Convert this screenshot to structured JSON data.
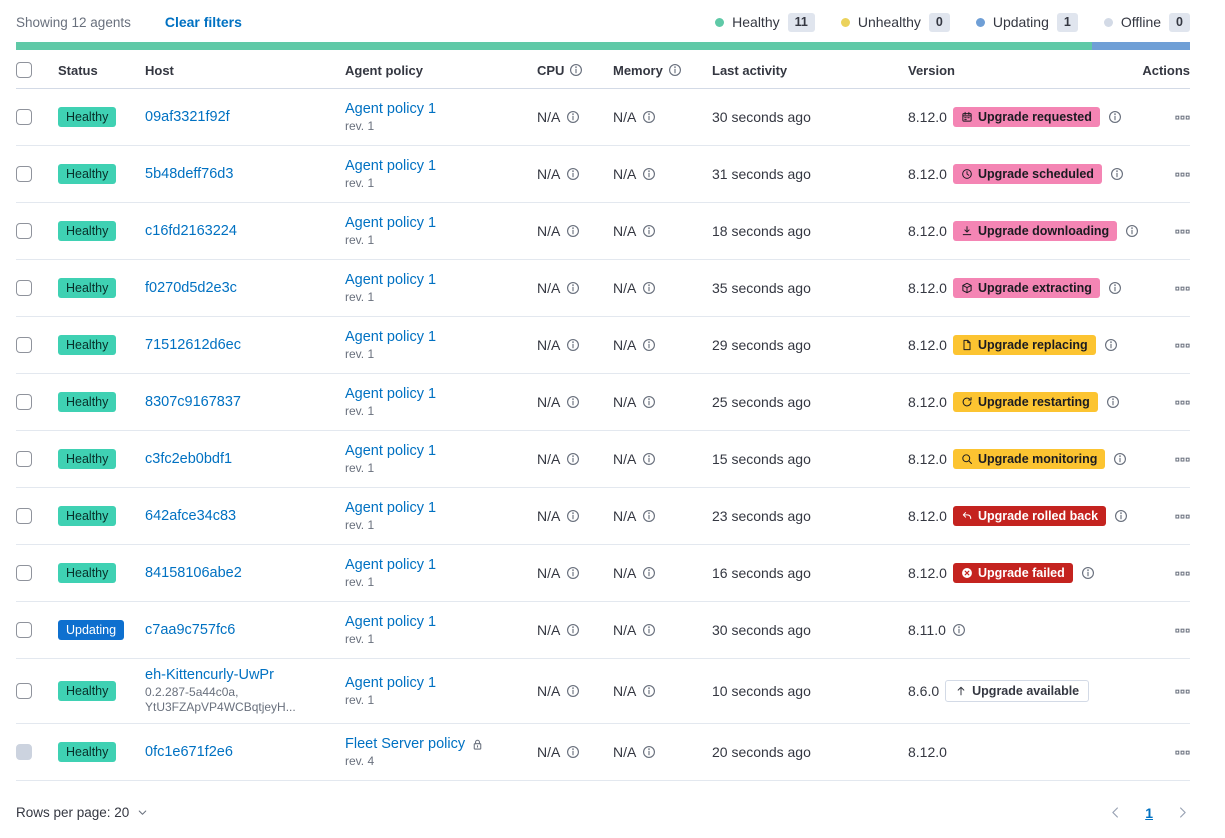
{
  "toolbar": {
    "showing": "Showing 12 agents",
    "clear_filters": "Clear filters"
  },
  "status_legend": [
    {
      "label": "Healthy",
      "count": "11",
      "color": "#5fc9a7"
    },
    {
      "label": "Unhealthy",
      "count": "0",
      "color": "#ebd25b"
    },
    {
      "label": "Updating",
      "count": "1",
      "color": "#6f9fd6"
    },
    {
      "label": "Offline",
      "count": "0",
      "color": "#d3dae6"
    }
  ],
  "progress_bar": {
    "segments": [
      {
        "name": "healthy-segment",
        "color": "#5fc9a7",
        "flex": 11
      },
      {
        "name": "updating-segment",
        "color": "#6f9fd6",
        "flex": 1
      }
    ]
  },
  "table": {
    "columns": [
      {
        "label": "Status",
        "info_icon": false,
        "align": "left"
      },
      {
        "label": "Host",
        "info_icon": false,
        "align": "left"
      },
      {
        "label": "Agent policy",
        "info_icon": false,
        "align": "left"
      },
      {
        "label": "CPU",
        "info_icon": true,
        "align": "left"
      },
      {
        "label": "Memory",
        "info_icon": true,
        "align": "left"
      },
      {
        "label": "Last activity",
        "info_icon": false,
        "align": "left"
      },
      {
        "label": "Version",
        "info_icon": false,
        "align": "left"
      },
      {
        "label": "Actions",
        "info_icon": false,
        "align": "right"
      }
    ],
    "rows": [
      {
        "status": "Healthy",
        "status_style": "healthy",
        "host": "09af3321f92f",
        "host_sub": [],
        "policy": "Agent policy 1",
        "policy_rev": "rev. 1",
        "policy_locked": false,
        "cpu": "N/A",
        "memory": "N/A",
        "last_activity": "30 seconds ago",
        "version": "8.12.0",
        "version_info": false,
        "upgrade": {
          "label": "Upgrade requested",
          "icon": "calendar-icon",
          "style": "pink"
        },
        "upgrade_info": true,
        "checkbox_disabled": false
      },
      {
        "status": "Healthy",
        "status_style": "healthy",
        "host": "5b48deff76d3",
        "host_sub": [],
        "policy": "Agent policy 1",
        "policy_rev": "rev. 1",
        "policy_locked": false,
        "cpu": "N/A",
        "memory": "N/A",
        "last_activity": "31 seconds ago",
        "version": "8.12.0",
        "version_info": false,
        "upgrade": {
          "label": "Upgrade scheduled",
          "icon": "clock-icon",
          "style": "pink"
        },
        "upgrade_info": true,
        "checkbox_disabled": false
      },
      {
        "status": "Healthy",
        "status_style": "healthy",
        "host": "c16fd2163224",
        "host_sub": [],
        "policy": "Agent policy 1",
        "policy_rev": "rev. 1",
        "policy_locked": false,
        "cpu": "N/A",
        "memory": "N/A",
        "last_activity": "18 seconds ago",
        "version": "8.12.0",
        "version_info": false,
        "upgrade": {
          "label": "Upgrade downloading",
          "icon": "download-icon",
          "style": "pink"
        },
        "upgrade_info": true,
        "checkbox_disabled": false
      },
      {
        "status": "Healthy",
        "status_style": "healthy",
        "host": "f0270d5d2e3c",
        "host_sub": [],
        "policy": "Agent policy 1",
        "policy_rev": "rev. 1",
        "policy_locked": false,
        "cpu": "N/A",
        "memory": "N/A",
        "last_activity": "35 seconds ago",
        "version": "8.12.0",
        "version_info": false,
        "upgrade": {
          "label": "Upgrade extracting",
          "icon": "package-icon",
          "style": "pink"
        },
        "upgrade_info": true,
        "checkbox_disabled": false
      },
      {
        "status": "Healthy",
        "status_style": "healthy",
        "host": "71512612d6ec",
        "host_sub": [],
        "policy": "Agent policy 1",
        "policy_rev": "rev. 1",
        "policy_locked": false,
        "cpu": "N/A",
        "memory": "N/A",
        "last_activity": "29 seconds ago",
        "version": "8.12.0",
        "version_info": false,
        "upgrade": {
          "label": "Upgrade replacing",
          "icon": "document-icon",
          "style": "yellow"
        },
        "upgrade_info": true,
        "checkbox_disabled": false
      },
      {
        "status": "Healthy",
        "status_style": "healthy",
        "host": "8307c9167837",
        "host_sub": [],
        "policy": "Agent policy 1",
        "policy_rev": "rev. 1",
        "policy_locked": false,
        "cpu": "N/A",
        "memory": "N/A",
        "last_activity": "25 seconds ago",
        "version": "8.12.0",
        "version_info": false,
        "upgrade": {
          "label": "Upgrade restarting",
          "icon": "refresh-icon",
          "style": "yellow"
        },
        "upgrade_info": true,
        "checkbox_disabled": false
      },
      {
        "status": "Healthy",
        "status_style": "healthy",
        "host": "c3fc2eb0bdf1",
        "host_sub": [],
        "policy": "Agent policy 1",
        "policy_rev": "rev. 1",
        "policy_locked": false,
        "cpu": "N/A",
        "memory": "N/A",
        "last_activity": "15 seconds ago",
        "version": "8.12.0",
        "version_info": false,
        "upgrade": {
          "label": "Upgrade monitoring",
          "icon": "inspect-icon",
          "style": "yellow"
        },
        "upgrade_info": true,
        "checkbox_disabled": false
      },
      {
        "status": "Healthy",
        "status_style": "healthy",
        "host": "642afce34c83",
        "host_sub": [],
        "policy": "Agent policy 1",
        "policy_rev": "rev. 1",
        "policy_locked": false,
        "cpu": "N/A",
        "memory": "N/A",
        "last_activity": "23 seconds ago",
        "version": "8.12.0",
        "version_info": false,
        "upgrade": {
          "label": "Upgrade rolled back",
          "icon": "return-icon",
          "style": "red"
        },
        "upgrade_info": true,
        "checkbox_disabled": false
      },
      {
        "status": "Healthy",
        "status_style": "healthy",
        "host": "84158106abe2",
        "host_sub": [],
        "policy": "Agent policy 1",
        "policy_rev": "rev. 1",
        "policy_locked": false,
        "cpu": "N/A",
        "memory": "N/A",
        "last_activity": "16 seconds ago",
        "version": "8.12.0",
        "version_info": false,
        "upgrade": {
          "label": "Upgrade failed",
          "icon": "error-icon",
          "style": "red"
        },
        "upgrade_info": true,
        "checkbox_disabled": false
      },
      {
        "status": "Updating",
        "status_style": "updating",
        "host": "c7aa9c757fc6",
        "host_sub": [],
        "policy": "Agent policy 1",
        "policy_rev": "rev. 1",
        "policy_locked": false,
        "cpu": "N/A",
        "memory": "N/A",
        "last_activity": "30 seconds ago",
        "version": "8.11.0",
        "version_info": true,
        "upgrade": null,
        "upgrade_info": false,
        "checkbox_disabled": false
      },
      {
        "status": "Healthy",
        "status_style": "healthy",
        "host": "eh-Kittencurly-UwPr",
        "host_sub": [
          "0.2.287-5a44c0a,",
          "YtU3FZApVP4WCBqtjeyH..."
        ],
        "policy": "Agent policy 1",
        "policy_rev": "rev. 1",
        "policy_locked": false,
        "cpu": "N/A",
        "memory": "N/A",
        "last_activity": "10 seconds ago",
        "version": "8.6.0",
        "version_info": false,
        "upgrade": {
          "label": "Upgrade available",
          "icon": "arrow-up-icon",
          "style": "outlined"
        },
        "upgrade_info": false,
        "checkbox_disabled": false
      },
      {
        "status": "Healthy",
        "status_style": "healthy",
        "host": "0fc1e671f2e6",
        "host_sub": [],
        "policy": "Fleet Server policy",
        "policy_rev": "rev. 4",
        "policy_locked": true,
        "cpu": "N/A",
        "memory": "N/A",
        "last_activity": "20 seconds ago",
        "version": "8.12.0",
        "version_info": false,
        "upgrade": null,
        "upgrade_info": false,
        "checkbox_disabled": true
      }
    ]
  },
  "footer": {
    "rows_per_page_label": "Rows per page: 20",
    "current_page": "1"
  }
}
